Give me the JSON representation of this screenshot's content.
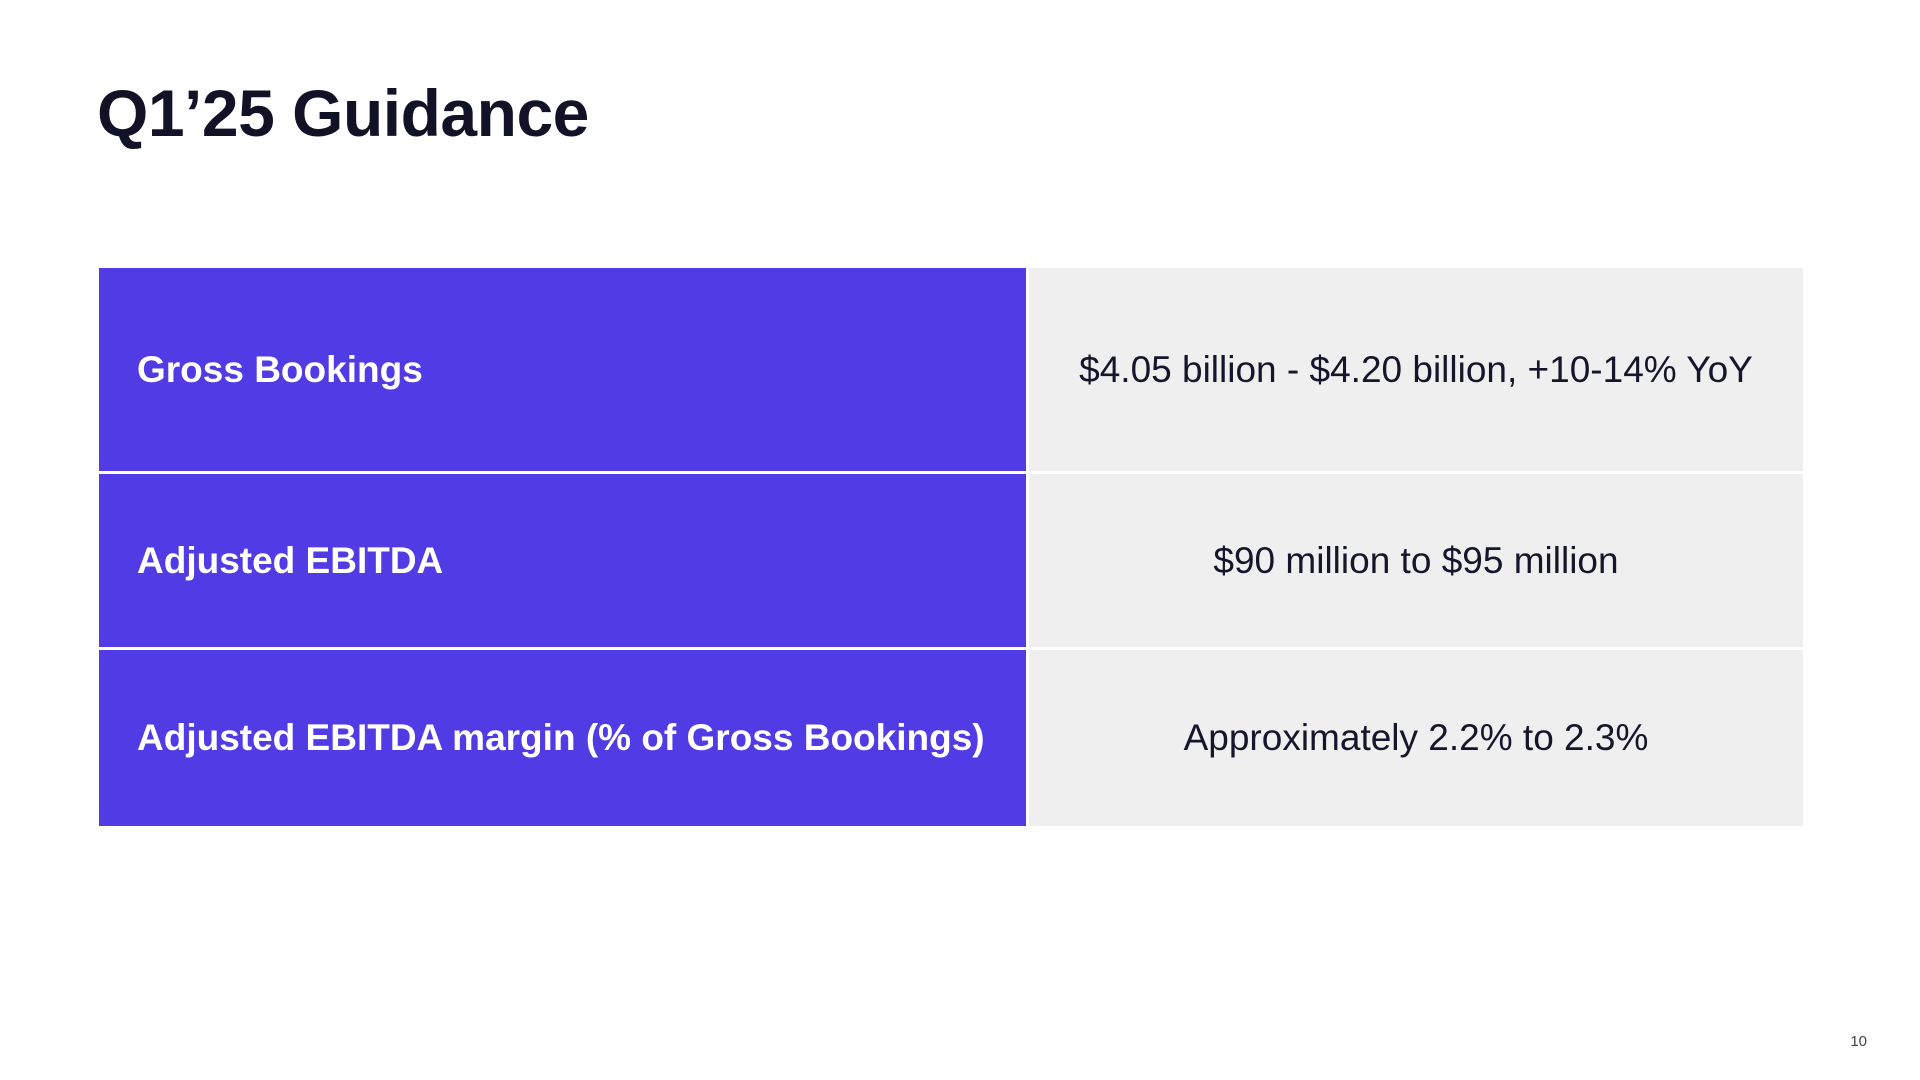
{
  "slide": {
    "title": "Q1’25 Guidance",
    "page_number": "10"
  },
  "guidance": {
    "rows": [
      {
        "metric": "Gross Bookings",
        "value": "$4.05 billion - $4.20 billion, +10-14% YoY"
      },
      {
        "metric": "Adjusted EBITDA",
        "value": "$90 million to $95 million"
      },
      {
        "metric": "Adjusted EBITDA margin (% of Gross Bookings)",
        "value": "Approximately 2.2% to 2.3%"
      }
    ]
  },
  "colors": {
    "accent": "#513be5",
    "value_background": "#efefef",
    "title_text": "#121226"
  }
}
